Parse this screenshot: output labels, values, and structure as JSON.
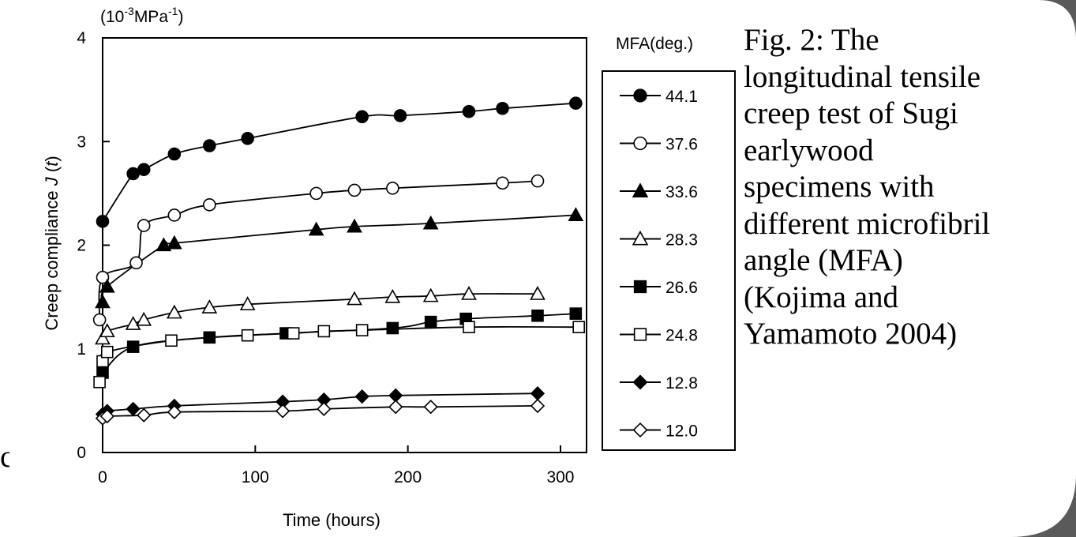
{
  "chart_data": {
    "type": "scatter",
    "title": "",
    "xlabel": "Time (hours)",
    "ylabel": "Creep compliance J(t)",
    "ylabel_parts": {
      "main": "Creep compliance ",
      "italic": "J",
      "open": " (",
      "var": "t",
      "close": ")"
    },
    "yunit": {
      "prefix": "(10",
      "exp": "-3",
      "suffix": "MPa",
      "exp2": "-1",
      "close": ")"
    },
    "xlim": [
      0,
      315
    ],
    "ylim": [
      0,
      4
    ],
    "xticks": [
      "0",
      "100",
      "200",
      "300"
    ],
    "yticks": [
      "0",
      "1",
      "2",
      "3",
      "4"
    ],
    "grid": false,
    "legend_title": "MFA(deg.)",
    "legend_position": "right",
    "series": [
      {
        "name": "44.1",
        "marker": "circle",
        "filled": true,
        "x": [
          0,
          20,
          27,
          47,
          70,
          95,
          170,
          195,
          240,
          262,
          310
        ],
        "y": [
          2.23,
          2.69,
          2.73,
          2.88,
          2.96,
          3.03,
          3.24,
          3.25,
          3.29,
          3.32,
          3.37
        ]
      },
      {
        "name": "37.6",
        "marker": "circle",
        "filled": false,
        "x": [
          -2,
          0,
          22,
          27,
          47,
          70,
          140,
          165,
          190,
          262,
          285
        ],
        "y": [
          1.28,
          1.69,
          1.83,
          2.19,
          2.29,
          2.39,
          2.5,
          2.53,
          2.55,
          2.6,
          2.62
        ]
      },
      {
        "name": "33.6",
        "marker": "triangle",
        "filled": true,
        "x": [
          0,
          3,
          40,
          47,
          140,
          165,
          215,
          310
        ],
        "y": [
          1.45,
          1.6,
          2.0,
          2.02,
          2.15,
          2.18,
          2.21,
          2.29
        ]
      },
      {
        "name": "28.3",
        "marker": "triangle",
        "filled": false,
        "x": [
          0,
          3,
          20,
          27,
          47,
          70,
          95,
          165,
          190,
          215,
          240,
          285
        ],
        "y": [
          1.1,
          1.17,
          1.24,
          1.28,
          1.35,
          1.4,
          1.43,
          1.48,
          1.5,
          1.51,
          1.53,
          1.53
        ]
      },
      {
        "name": "26.6",
        "marker": "square",
        "filled": true,
        "x": [
          0,
          20,
          70,
          120,
          190,
          215,
          238,
          285,
          310
        ],
        "y": [
          0.77,
          1.02,
          1.11,
          1.15,
          1.2,
          1.26,
          1.29,
          1.32,
          1.34
        ]
      },
      {
        "name": "24.8",
        "marker": "square",
        "filled": false,
        "x": [
          -2,
          0,
          3,
          45,
          95,
          125,
          145,
          170,
          240,
          312
        ],
        "y": [
          0.68,
          0.88,
          0.97,
          1.08,
          1.13,
          1.15,
          1.17,
          1.18,
          1.21,
          1.21
        ]
      },
      {
        "name": "12.8",
        "marker": "diamond",
        "filled": true,
        "x": [
          0,
          3,
          20,
          47,
          118,
          145,
          170,
          192,
          285
        ],
        "y": [
          0.37,
          0.4,
          0.42,
          0.45,
          0.49,
          0.51,
          0.54,
          0.55,
          0.57
        ]
      },
      {
        "name": "12.0",
        "marker": "diamond",
        "filled": false,
        "x": [
          0,
          3,
          27,
          47,
          118,
          145,
          192,
          215,
          285
        ],
        "y": [
          0.33,
          0.35,
          0.36,
          0.39,
          0.4,
          0.42,
          0.44,
          0.44,
          0.45
        ]
      }
    ]
  },
  "caption": "Fig. 2: The\nlongitudinal tensile\ncreep test of Sugi\nearlywood\nspecimens with\ndifferent microfibril\nangle (MFA)\n(Kojima and\nYamamoto 2004)",
  "edge_fragment": "c",
  "colors": {
    "ink": "#000000",
    "background": "#ffffff",
    "corner": "#5a5a5a"
  }
}
